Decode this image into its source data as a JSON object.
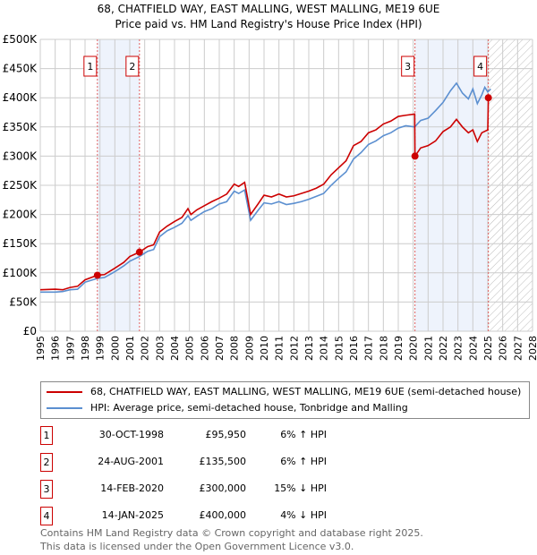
{
  "title": "68, CHATFIELD WAY, EAST MALLING, WEST MALLING, ME19 6UE",
  "subtitle": "Price paid vs. HM Land Registry's House Price Index (HPI)",
  "chart_data": {
    "type": "line",
    "title": "68, CHATFIELD WAY, EAST MALLING, WEST MALLING, ME19 6UE",
    "subtitle": "Price paid vs. HM Land Registry's House Price Index (HPI)",
    "xlim": [
      1995,
      2028
    ],
    "ylim": [
      0,
      500000
    ],
    "x_ticks": [
      "1995",
      "1996",
      "1997",
      "1998",
      "1999",
      "2000",
      "2001",
      "2002",
      "2003",
      "2004",
      "2005",
      "2006",
      "2007",
      "2008",
      "2009",
      "2010",
      "2011",
      "2012",
      "2013",
      "2014",
      "2015",
      "2016",
      "2017",
      "2018",
      "2019",
      "2020",
      "2021",
      "2022",
      "2023",
      "2024",
      "2025",
      "2026",
      "2027",
      "2028"
    ],
    "y_ticks": [
      {
        "v": 0,
        "l": "£0"
      },
      {
        "v": 50000,
        "l": "£50K"
      },
      {
        "v": 100000,
        "l": "£100K"
      },
      {
        "v": 150000,
        "l": "£150K"
      },
      {
        "v": 200000,
        "l": "£200K"
      },
      {
        "v": 250000,
        "l": "£250K"
      },
      {
        "v": 300000,
        "l": "£300K"
      },
      {
        "v": 350000,
        "l": "£350K"
      },
      {
        "v": 400000,
        "l": "£400K"
      },
      {
        "v": 450000,
        "l": "£450K"
      },
      {
        "v": 500000,
        "l": "£500K"
      }
    ],
    "grid": true,
    "series": [
      {
        "name": "68, CHATFIELD WAY, EAST MALLING, WEST MALLING, ME19 6UE (semi-detached house)",
        "color": "#cc0000",
        "x": [
          1995,
          1996,
          1996.5,
          1997,
          1997.5,
          1998,
          1998.83,
          1999.3,
          2000,
          2000.6,
          2001,
          2001.65,
          2002.2,
          2002.6,
          2003,
          2003.5,
          2004,
          2004.5,
          2004.9,
          2005.1,
          2005.5,
          2006,
          2006.5,
          2007,
          2007.5,
          2008,
          2008.3,
          2008.7,
          2009.1,
          2009.6,
          2010,
          2010.5,
          2011,
          2011.5,
          2012,
          2012.5,
          2013,
          2013.5,
          2014,
          2014.5,
          2015,
          2015.5,
          2016,
          2016.5,
          2017,
          2017.5,
          2018,
          2018.5,
          2019,
          2019.5,
          2020.1,
          2020.12,
          2020.5,
          2021,
          2021.5,
          2022,
          2022.5,
          2022.9,
          2023.3,
          2023.7,
          2024,
          2024.3,
          2024.6,
          2025.0,
          2025.04
        ],
        "y": [
          71000,
          72000,
          71000,
          75000,
          77000,
          88000,
          95950,
          97000,
          108000,
          118000,
          128000,
          135500,
          145000,
          148000,
          170000,
          180000,
          188000,
          195000,
          210000,
          200000,
          208000,
          215000,
          222000,
          228000,
          235000,
          252000,
          248000,
          255000,
          200000,
          218000,
          233000,
          230000,
          235000,
          230000,
          232000,
          236000,
          240000,
          245000,
          252000,
          268000,
          280000,
          292000,
          318000,
          325000,
          340000,
          345000,
          355000,
          360000,
          368000,
          370000,
          372000,
          300000,
          314000,
          318000,
          326000,
          342000,
          350000,
          363000,
          350000,
          340000,
          345000,
          325000,
          340000,
          345000,
          400000
        ]
      },
      {
        "name": "HPI: Average price, semi-detached house, Tonbridge and Malling",
        "color": "#5b8fd0",
        "x": [
          1995,
          1996,
          1996.5,
          1997,
          1997.5,
          1998,
          1998.83,
          1999.3,
          2000,
          2000.6,
          2001,
          2001.65,
          2002.2,
          2002.6,
          2003,
          2003.5,
          2004,
          2004.5,
          2004.9,
          2005.1,
          2005.5,
          2006,
          2006.5,
          2007,
          2007.5,
          2008,
          2008.3,
          2008.7,
          2009.1,
          2009.6,
          2010,
          2010.5,
          2011,
          2011.5,
          2012,
          2012.5,
          2013,
          2013.5,
          2014,
          2014.5,
          2015,
          2015.5,
          2016,
          2016.5,
          2017,
          2017.5,
          2018,
          2018.5,
          2019,
          2019.5,
          2020.1,
          2020.5,
          2021,
          2021.5,
          2022,
          2022.5,
          2022.9,
          2023.3,
          2023.7,
          2024,
          2024.3,
          2024.6,
          2024.8,
          2025.0,
          2025.2
        ],
        "y": [
          67000,
          67000,
          68000,
          71000,
          72000,
          84000,
          90500,
          92000,
          102000,
          112000,
          120000,
          128000,
          137000,
          140000,
          162000,
          172000,
          178000,
          185000,
          198000,
          190000,
          197000,
          205000,
          210000,
          218000,
          222000,
          240000,
          236000,
          242000,
          190000,
          207000,
          220000,
          218000,
          222000,
          217000,
          219000,
          222000,
          226000,
          231000,
          236000,
          250000,
          262000,
          273000,
          295000,
          306000,
          320000,
          326000,
          335000,
          340000,
          348000,
          352000,
          350000,
          361000,
          365000,
          378000,
          392000,
          412000,
          425000,
          408000,
          398000,
          415000,
          390000,
          405000,
          418000,
          410000,
          415000
        ]
      }
    ],
    "markers": [
      {
        "id": "1",
        "x": 1998.83,
        "y": 95950
      },
      {
        "id": "2",
        "x": 2001.65,
        "y": 135500
      },
      {
        "id": "3",
        "x": 2020.12,
        "y": 300000
      },
      {
        "id": "4",
        "x": 2025.04,
        "y": 400000
      }
    ],
    "shaded_ranges": [
      [
        1998.83,
        2001.65
      ],
      [
        2020.12,
        2025.04
      ]
    ],
    "forecast_hatch": [
      2025.04,
      2028
    ],
    "legend_position": "below"
  },
  "legend": [
    {
      "label": "68, CHATFIELD WAY, EAST MALLING, WEST MALLING, ME19 6UE (semi-detached house)",
      "color": "#cc0000"
    },
    {
      "label": "HPI: Average price, semi-detached house, Tonbridge and Malling",
      "color": "#5b8fd0"
    }
  ],
  "transactions": [
    {
      "num": "1",
      "date": "30-OCT-1998",
      "price": "£95,950",
      "hpi": "6% ↑ HPI"
    },
    {
      "num": "2",
      "date": "24-AUG-2001",
      "price": "£135,500",
      "hpi": "6% ↑ HPI"
    },
    {
      "num": "3",
      "date": "14-FEB-2020",
      "price": "£300,000",
      "hpi": "15% ↓ HPI"
    },
    {
      "num": "4",
      "date": "14-JAN-2025",
      "price": "£400,000",
      "hpi": "4% ↓ HPI"
    }
  ],
  "footer": {
    "line1": "Contains HM Land Registry data © Crown copyright and database right 2025.",
    "line2": "This data is licensed under the Open Government Licence v3.0."
  }
}
